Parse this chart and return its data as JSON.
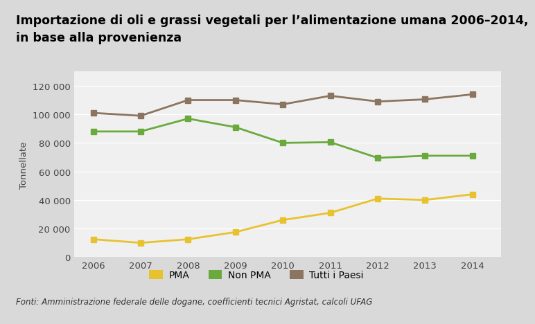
{
  "title": "Importazione di oli e grassi vegetali per l’alimentazione umana 2006–2014,\nin base alla provenienza",
  "ylabel": "Tonnellate",
  "footnote": "Fonti: Amministrazione federale delle dogane, coefficienti tecnici Agristat, calcoli UFAG",
  "years": [
    2006,
    2007,
    2008,
    2009,
    2010,
    2011,
    2012,
    2013,
    2014
  ],
  "pma": [
    12500,
    10000,
    12500,
    17500,
    26000,
    31000,
    41000,
    40000,
    44000
  ],
  "non_pma": [
    88000,
    88000,
    97000,
    91000,
    80000,
    80500,
    69500,
    71000,
    71000
  ],
  "tutti": [
    101000,
    99000,
    110000,
    110000,
    107000,
    113000,
    109000,
    110500,
    114000
  ],
  "color_pma": "#e8c22e",
  "color_non_pma": "#6aaa3c",
  "color_tutti": "#8b7560",
  "background_plot": "#f0f0f0",
  "background_fig": "#d9d9d9",
  "ylim": [
    0,
    130000
  ],
  "yticks": [
    0,
    20000,
    40000,
    60000,
    80000,
    100000,
    120000
  ],
  "title_fontsize": 12.5,
  "axis_fontsize": 9.5,
  "legend_fontsize": 10,
  "footnote_fontsize": 8.5,
  "linewidth": 2.0,
  "marker": "s",
  "markersize": 6
}
